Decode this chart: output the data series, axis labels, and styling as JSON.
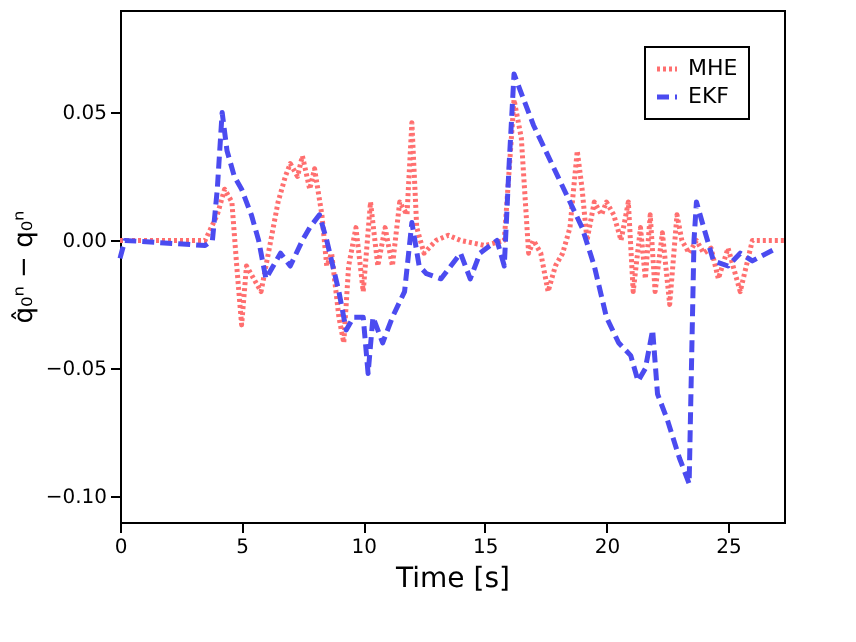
{
  "chart_data": {
    "type": "line",
    "xlabel": "Time [s]",
    "ylabel": "q̂₀ⁿ − q₀ⁿ",
    "xlim": [
      0,
      27.3
    ],
    "xticks": [
      0,
      5,
      10,
      15,
      20,
      25
    ],
    "ylim": [
      -0.11,
      0.09
    ],
    "yticks": [
      {
        "value": -0.1,
        "label": "−0.10"
      },
      {
        "value": -0.05,
        "label": "−0.05"
      },
      {
        "value": 0,
        "label": "0.00"
      },
      {
        "value": 0.05,
        "label": "0.05"
      }
    ],
    "grid": false,
    "legend": "top right",
    "marker": "none",
    "series": [
      {
        "name": "MHE",
        "color": "#ff6f6f",
        "line_style": "dotted",
        "x": [
          0,
          3.5,
          4,
          4.3,
          4.6,
          4.8,
          5.0,
          5.2,
          5.5,
          5.8,
          6.2,
          6.5,
          6.8,
          7.0,
          7.3,
          7.5,
          7.8,
          8.0,
          8.3,
          8.5,
          8.7,
          9.0,
          9.2,
          9.4,
          9.7,
          10.0,
          10.3,
          10.6,
          10.9,
          11.2,
          11.5,
          11.8,
          12.0,
          12.2,
          12.5,
          13,
          13.5,
          14,
          15,
          15.8,
          16.2,
          16.5,
          16.8,
          17.0,
          17.3,
          17.6,
          17.9,
          18.2,
          18.5,
          18.8,
          19.0,
          19.2,
          19.5,
          19.8,
          20.0,
          20.3,
          20.6,
          20.9,
          21.1,
          21.4,
          21.6,
          21.8,
          22.0,
          22.3,
          22.6,
          22.9,
          23.1,
          23.4,
          23.7,
          24.0,
          24.3,
          24.6,
          25,
          25.5,
          26,
          27,
          27.3
        ],
        "values": [
          0,
          0,
          0.01,
          0.02,
          0.015,
          -0.01,
          -0.033,
          -0.01,
          -0.015,
          -0.02,
          0,
          0.015,
          0.025,
          0.03,
          0.025,
          0.033,
          0.02,
          0.028,
          0.01,
          -0.01,
          -0.005,
          -0.03,
          -0.04,
          -0.01,
          0.005,
          -0.02,
          0.015,
          -0.01,
          0.005,
          -0.01,
          0.015,
          0.01,
          0.046,
          0.005,
          -0.005,
          0,
          0.002,
          0,
          -0.002,
          0,
          0.055,
          0.04,
          -0.005,
          0,
          -0.005,
          -0.02,
          -0.01,
          -0.005,
          0.005,
          0.035,
          0.02,
          0,
          0.015,
          0.01,
          0.015,
          0.01,
          0,
          0.015,
          -0.02,
          0.005,
          -0.015,
          0.01,
          -0.02,
          0.003,
          -0.025,
          0.01,
          0,
          -0.005,
          0,
          -0.005,
          -0.003,
          -0.015,
          -0.003,
          -0.02,
          0,
          0,
          0
        ]
      },
      {
        "name": "EKF",
        "color": "#4b4bf0",
        "line_style": "dashed",
        "x": [
          0,
          0.2,
          3.5,
          3.8,
          4.0,
          4.2,
          4.4,
          4.7,
          5.0,
          5.4,
          5.7,
          6.0,
          6.3,
          6.6,
          7.0,
          7.5,
          7.8,
          8.2,
          8.5,
          9.0,
          9.3,
          9.6,
          10.0,
          10.2,
          10.4,
          10.8,
          11.2,
          11.7,
          12.0,
          12.3,
          12.6,
          13.2,
          13.6,
          14.0,
          14.4,
          14.8,
          15.5,
          15.8,
          16.0,
          16.2,
          16.6,
          17,
          17.5,
          18,
          18.5,
          19,
          19.5,
          20,
          20.5,
          21,
          21.3,
          21.6,
          21.9,
          22.1,
          22.5,
          23,
          23.4,
          23.6,
          23.7,
          24,
          24.4,
          25,
          25.5,
          26,
          27
        ],
        "values": [
          -0.007,
          0,
          -0.002,
          0,
          0.02,
          0.05,
          0.035,
          0.025,
          0.02,
          0.01,
          0,
          -0.015,
          -0.01,
          -0.005,
          -0.01,
          0,
          0.005,
          0.01,
          0,
          -0.02,
          -0.035,
          -0.03,
          -0.03,
          -0.052,
          -0.03,
          -0.04,
          -0.03,
          -0.02,
          0.007,
          -0.01,
          -0.013,
          -0.015,
          -0.01,
          -0.005,
          -0.015,
          -0.005,
          0,
          -0.01,
          0.03,
          0.065,
          0.055,
          0.045,
          0.035,
          0.025,
          0.015,
          0.005,
          -0.01,
          -0.03,
          -0.04,
          -0.045,
          -0.055,
          -0.05,
          -0.035,
          -0.06,
          -0.07,
          -0.085,
          -0.095,
          0,
          0.015,
          0.005,
          -0.008,
          -0.01,
          -0.005,
          -0.008,
          -0.003
        ]
      }
    ]
  }
}
